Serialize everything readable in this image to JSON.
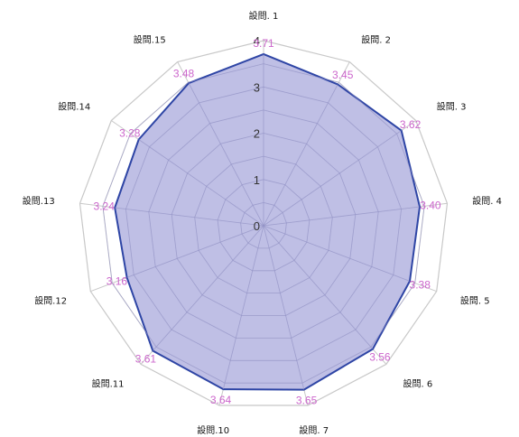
{
  "chart_data": {
    "type": "radar",
    "categories": [
      "設問. 1",
      "設問. 2",
      "設問. 3",
      "設問. 4",
      "設問. 5",
      "設問. 6",
      "設問. 7",
      "設問.10",
      "設問.11",
      "設問.12",
      "設問.13",
      "設問.14",
      "設問.15"
    ],
    "values": [
      3.71,
      3.45,
      3.62,
      3.4,
      3.38,
      3.56,
      3.65,
      3.64,
      3.61,
      3.16,
      3.24,
      3.28,
      3.48
    ],
    "data_labels": [
      "3.71",
      "3.45",
      "3.62",
      "3.40",
      "3.38",
      "3.56",
      "3.65",
      "3.64",
      "3.61",
      "3.16",
      "3.24",
      "3.28",
      "3.48"
    ],
    "rlim": [
      0,
      4
    ],
    "radial_ticks": [
      "0",
      "1",
      "2",
      "3",
      "4"
    ],
    "grid": true,
    "legend": "none"
  },
  "colors": {
    "fill": "#b4b4e0",
    "line": "#2e45a5",
    "grid": "#c8c8c8",
    "data_label": "#cc66cc",
    "axis_text": "#111111",
    "tick_text": "#333333"
  }
}
